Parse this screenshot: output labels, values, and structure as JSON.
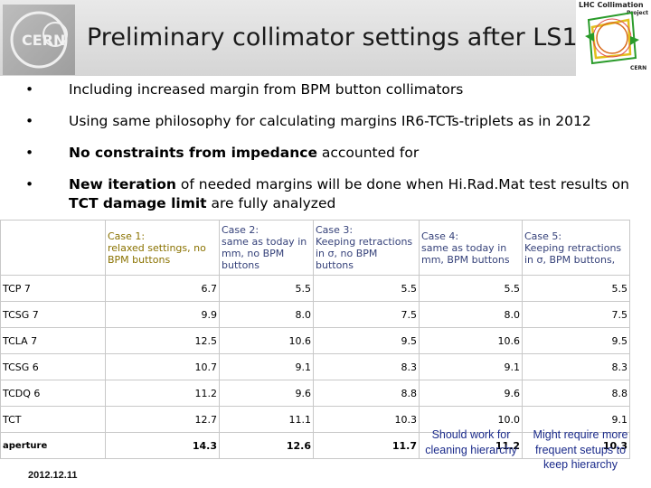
{
  "header": {
    "title": "Preliminary collimator settings after LS1",
    "left_logo_text": "CERN",
    "right_logo_title": "LHC Collimation",
    "right_logo_sub": "Project",
    "right_logo_cern": "CERN"
  },
  "bullets": [
    {
      "bold": "",
      "text": "Including increased margin from BPM button collimators"
    },
    {
      "bold": "",
      "text": "Using same philosophy for calculating margins IR6-TCTs-triplets as in 2012"
    },
    {
      "bold": "No constraints from impedance",
      "text": " accounted for"
    },
    {
      "bold": "New iteration",
      "text": " of needed margins will be done when Hi.Rad.Mat test results on ",
      "bold2": "TCT damage limit",
      "text2": " are fully analyzed"
    }
  ],
  "bullet_symbol": "•",
  "table": {
    "headers": [
      "",
      "Case 1:\nrelaxed settings, no\nBPM buttons",
      "Case 2:\nsame as today in\nmm, no BPM\nbuttons",
      "Case 3:\nKeeping retractions\nin σ, no BPM\nbuttons",
      "Case 4:\nsame as today in\nmm, BPM buttons",
      "Case 5:\nKeeping retractions\nin σ, BPM buttons,"
    ],
    "rows": [
      {
        "label": "TCP 7",
        "values": [
          "6.7",
          "5.5",
          "5.5",
          "5.5",
          "5.5"
        ]
      },
      {
        "label": "TCSG 7",
        "values": [
          "9.9",
          "8.0",
          "7.5",
          "8.0",
          "7.5"
        ]
      },
      {
        "label": "TCLA 7",
        "values": [
          "12.5",
          "10.6",
          "9.5",
          "10.6",
          "9.5"
        ]
      },
      {
        "label": "TCSG 6",
        "values": [
          "10.7",
          "9.1",
          "8.3",
          "9.1",
          "8.3"
        ]
      },
      {
        "label": "TCDQ 6",
        "values": [
          "11.2",
          "9.6",
          "8.8",
          "9.6",
          "8.8"
        ]
      },
      {
        "label": "TCT",
        "values": [
          "12.7",
          "11.1",
          "10.3",
          "10.0",
          "9.1"
        ]
      },
      {
        "label": "aperture",
        "values": [
          "14.3",
          "12.6",
          "11.7",
          "11.2",
          "10.3"
        ]
      }
    ]
  },
  "notes": {
    "case4": "Should work for cleaning hierarchy",
    "case5": "Might require more frequent setups to keep hierarchy"
  },
  "date": "2012.12.11",
  "colors": {
    "case1_header": "#8a7200",
    "other_header": "#36427a",
    "notes": "#1a2a8a"
  }
}
